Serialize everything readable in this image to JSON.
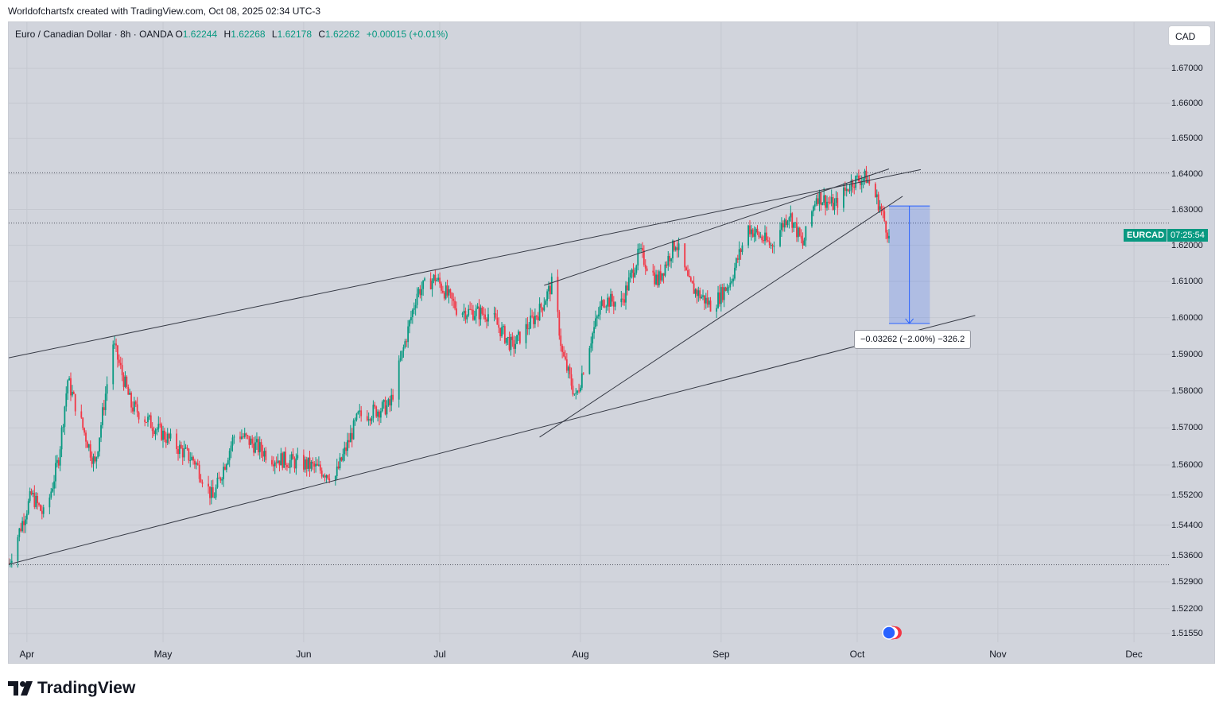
{
  "caption": "Worldofchartsfx created with TradingView.com, Oct 08, 2025 02:34 UTC-3",
  "legend": {
    "symbol": "Euro / Canadian Dollar · 8h · OANDA",
    "o_label": "O",
    "o": "1.62244",
    "h_label": "H",
    "h": "1.62268",
    "l_label": "L",
    "l": "1.62178",
    "c_label": "C",
    "c": "1.62262",
    "change": "+0.00015 (+0.01%)"
  },
  "currency_button": "CAD",
  "ticker_tag": {
    "symbol": "EURCAD",
    "countdown": "07:25:54"
  },
  "measure_label": "−0.03262 (−2.00%) −326.2",
  "brand": {
    "name": "TradingView",
    "logo_icon": "tradingview-logo-icon"
  },
  "colors": {
    "up": "#089981",
    "down": "#f23645",
    "background": "#d1d4dc",
    "measure": "#2962ff"
  },
  "chart_data": {
    "type": "candlestick",
    "symbol": "EURCAD",
    "timeframe": "8h",
    "x_ticks": [
      "Apr",
      "May",
      "Jun",
      "Jul",
      "Aug",
      "Sep",
      "Oct",
      "Nov",
      "Dec"
    ],
    "y_ticks": [
      "1.67000",
      "1.66000",
      "1.65000",
      "1.64000",
      "1.63000",
      "1.62000",
      "1.61000",
      "1.60000",
      "1.59000",
      "1.58000",
      "1.57000",
      "1.56000",
      "1.55200",
      "1.54400",
      "1.53600",
      "1.52900",
      "1.52200",
      "1.51550"
    ],
    "y_scale": "log",
    "ylim": [
      1.511,
      1.678
    ],
    "last_close": 1.62262,
    "approx_path": [
      [
        "2025-03-28",
        1.534
      ],
      [
        "2025-04-02",
        1.552
      ],
      [
        "2025-04-05",
        1.546
      ],
      [
        "2025-04-08",
        1.562
      ],
      [
        "2025-04-10",
        1.583
      ],
      [
        "2025-04-12",
        1.575
      ],
      [
        "2025-04-16",
        1.56
      ],
      [
        "2025-04-20",
        1.593
      ],
      [
        "2025-04-24",
        1.576
      ],
      [
        "2025-05-03",
        1.566
      ],
      [
        "2025-05-08",
        1.561
      ],
      [
        "2025-05-12",
        1.551
      ],
      [
        "2025-05-17",
        1.569
      ],
      [
        "2025-05-25",
        1.562
      ],
      [
        "2025-06-02",
        1.56
      ],
      [
        "2025-06-08",
        1.557
      ],
      [
        "2025-06-13",
        1.573
      ],
      [
        "2025-06-20",
        1.576
      ],
      [
        "2025-06-26",
        1.607
      ],
      [
        "2025-06-30",
        1.611
      ],
      [
        "2025-07-05",
        1.602
      ],
      [
        "2025-07-12",
        1.601
      ],
      [
        "2025-07-17",
        1.592
      ],
      [
        "2025-07-23",
        1.602
      ],
      [
        "2025-07-26",
        1.61
      ],
      [
        "2025-07-28",
        1.59
      ],
      [
        "2025-07-31",
        1.578
      ],
      [
        "2025-08-03",
        1.593
      ],
      [
        "2025-08-06",
        1.605
      ],
      [
        "2025-08-10",
        1.604
      ],
      [
        "2025-08-14",
        1.618
      ],
      [
        "2025-08-18",
        1.61
      ],
      [
        "2025-08-22",
        1.621
      ],
      [
        "2025-08-25",
        1.609
      ],
      [
        "2025-08-30",
        1.603
      ],
      [
        "2025-09-03",
        1.61
      ],
      [
        "2025-09-07",
        1.625
      ],
      [
        "2025-09-12",
        1.62
      ],
      [
        "2025-09-16",
        1.629
      ],
      [
        "2025-09-19",
        1.62
      ],
      [
        "2025-09-22",
        1.634
      ],
      [
        "2025-09-26",
        1.631
      ],
      [
        "2025-09-30",
        1.638
      ],
      [
        "2025-10-03",
        1.639
      ],
      [
        "2025-10-06",
        1.631
      ],
      [
        "2025-10-08",
        1.6226
      ]
    ],
    "trendlines": [
      {
        "points": [
          [
            "2025-03-28",
            1.589
          ],
          [
            "2025-10-15",
            1.6412
          ]
        ]
      },
      {
        "points": [
          [
            "2025-03-28",
            1.5336
          ],
          [
            "2025-10-27",
            1.6006
          ]
        ]
      },
      {
        "points": [
          [
            "2025-07-23",
            1.5675
          ],
          [
            "2025-10-11",
            1.6337
          ]
        ]
      },
      {
        "points": [
          [
            "2025-07-24",
            1.6089
          ],
          [
            "2025-10-08",
            1.6414
          ]
        ]
      }
    ],
    "horizontal_lines": [
      1.6403,
      1.6262,
      1.5335
    ],
    "measurement": {
      "from_date": "2025-10-08",
      "to_date": "2025-10-17",
      "from_price": 1.631,
      "to_price": 1.5984,
      "change": -0.03262,
      "change_pct": -2.0,
      "pips": -326.2
    },
    "grid": true,
    "legend_position": "top-left"
  }
}
